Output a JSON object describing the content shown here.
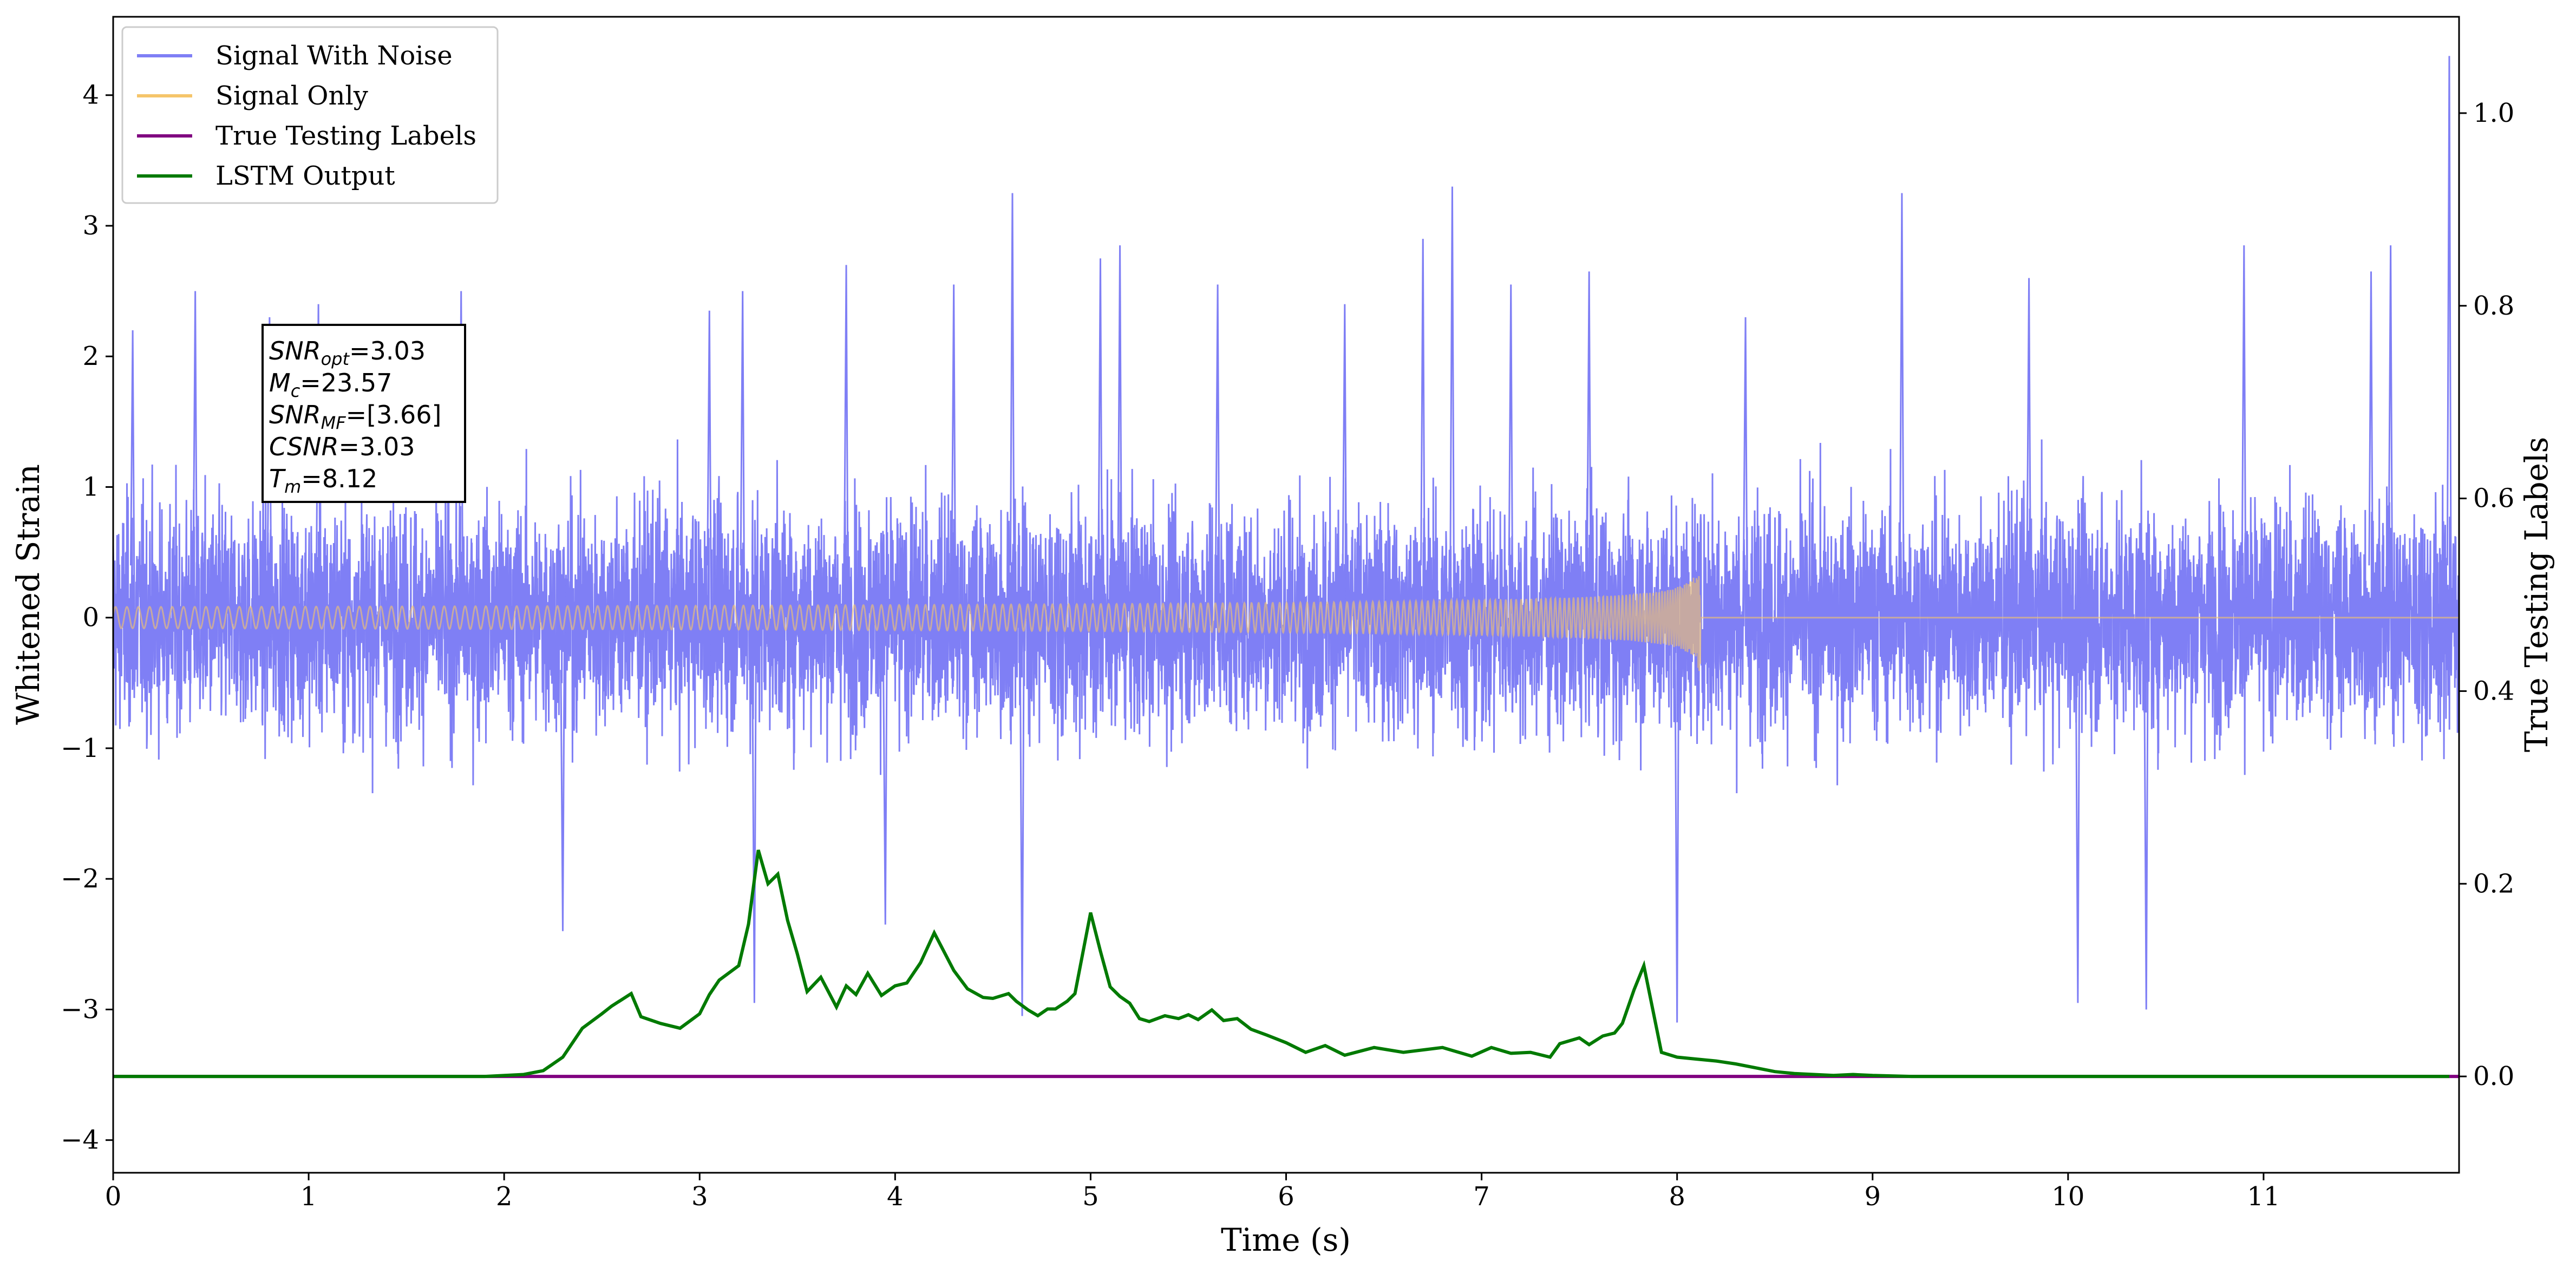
{
  "chart_data": {
    "type": "line",
    "xlabel": "Time (s)",
    "ylabel": "Whitened Strain",
    "ylabel_right": "True Testing Labels",
    "xlim": [
      0,
      12
    ],
    "ylim": [
      -4.25,
      4.6
    ],
    "ylim_right": [
      -0.1,
      1.1
    ],
    "xticks": [
      0,
      1,
      2,
      3,
      4,
      5,
      6,
      7,
      8,
      9,
      10,
      11
    ],
    "yticks": [
      -4,
      -3,
      -2,
      -1,
      0,
      1,
      2,
      3,
      4
    ],
    "yticks_right": [
      0.0,
      0.2,
      0.4,
      0.6,
      0.8,
      1.0
    ],
    "legend_position": "top-left",
    "series": [
      {
        "name": "Signal With Noise",
        "axis": "left",
        "color": "#7f7ff5",
        "description": "whitened noise, roughly within -1.5..1.5 with spikes to about -3 and 3.3",
        "spike_points": [
          [
            0.1,
            2.2
          ],
          [
            0.42,
            2.5
          ],
          [
            0.8,
            2.3
          ],
          [
            1.05,
            2.4
          ],
          [
            1.78,
            2.5
          ],
          [
            2.3,
            -2.4
          ],
          [
            3.05,
            2.35
          ],
          [
            3.22,
            2.5
          ],
          [
            3.28,
            -2.95
          ],
          [
            3.75,
            2.7
          ],
          [
            3.95,
            -2.35
          ],
          [
            4.3,
            2.55
          ],
          [
            4.6,
            3.25
          ],
          [
            4.65,
            -3.05
          ],
          [
            5.05,
            2.75
          ],
          [
            5.15,
            2.85
          ],
          [
            5.65,
            2.55
          ],
          [
            6.3,
            2.4
          ],
          [
            6.7,
            2.9
          ],
          [
            6.85,
            3.3
          ],
          [
            7.15,
            2.55
          ],
          [
            7.55,
            2.65
          ],
          [
            8.0,
            -3.1
          ],
          [
            8.35,
            2.3
          ],
          [
            9.15,
            3.25
          ],
          [
            9.8,
            2.6
          ],
          [
            10.05,
            -2.95
          ],
          [
            10.4,
            -3.0
          ],
          [
            10.9,
            2.85
          ],
          [
            11.55,
            2.65
          ],
          [
            11.65,
            2.85
          ],
          [
            11.95,
            4.3
          ]
        ]
      },
      {
        "name": "Signal Only",
        "axis": "left",
        "color": "#f5c56a",
        "merger_time": 8.12,
        "description": "chirp signal growing in amplitude toward merger at about 8.12 s, peak about 0.55, then zero"
      },
      {
        "name": "True Testing Labels",
        "axis": "right",
        "color": "#800080",
        "x": [
          0,
          12
        ],
        "y": [
          0.0,
          0.0
        ]
      },
      {
        "name": "LSTM Output",
        "axis": "right",
        "color": "#007a00",
        "x": [
          0,
          0.3,
          0.6,
          1.0,
          1.5,
          1.9,
          2.1,
          2.2,
          2.3,
          2.4,
          2.5,
          2.55,
          2.65,
          2.7,
          2.8,
          2.9,
          3.0,
          3.05,
          3.1,
          3.2,
          3.25,
          3.3,
          3.35,
          3.4,
          3.45,
          3.5,
          3.55,
          3.62,
          3.7,
          3.75,
          3.8,
          3.86,
          3.93,
          4.0,
          4.06,
          4.13,
          4.2,
          4.3,
          4.37,
          4.45,
          4.5,
          4.58,
          4.62,
          4.68,
          4.73,
          4.78,
          4.82,
          4.88,
          4.92,
          5.0,
          5.05,
          5.1,
          5.15,
          5.2,
          5.25,
          5.3,
          5.38,
          5.45,
          5.5,
          5.55,
          5.62,
          5.68,
          5.75,
          5.82,
          5.9,
          6.0,
          6.1,
          6.2,
          6.3,
          6.45,
          6.6,
          6.8,
          6.95,
          7.05,
          7.15,
          7.25,
          7.35,
          7.4,
          7.5,
          7.55,
          7.62,
          7.68,
          7.72,
          7.78,
          7.83,
          7.92,
          8.0,
          8.1,
          8.2,
          8.3,
          8.4,
          8.5,
          8.6,
          8.8,
          8.9,
          9.0,
          9.2,
          9.5,
          9.8,
          10.2,
          10.6,
          11.0,
          11.5,
          11.95
        ],
        "y": [
          0.0,
          0.0,
          0.0,
          0.0,
          0.0,
          0.0,
          0.002,
          0.006,
          0.02,
          0.05,
          0.065,
          0.073,
          0.086,
          0.062,
          0.055,
          0.05,
          0.065,
          0.085,
          0.1,
          0.115,
          0.158,
          0.235,
          0.2,
          0.21,
          0.162,
          0.127,
          0.088,
          0.103,
          0.072,
          0.094,
          0.085,
          0.107,
          0.084,
          0.094,
          0.097,
          0.118,
          0.149,
          0.11,
          0.091,
          0.082,
          0.081,
          0.086,
          0.078,
          0.069,
          0.063,
          0.07,
          0.07,
          0.078,
          0.086,
          0.17,
          0.13,
          0.093,
          0.083,
          0.076,
          0.06,
          0.057,
          0.063,
          0.06,
          0.064,
          0.059,
          0.069,
          0.058,
          0.06,
          0.049,
          0.043,
          0.035,
          0.025,
          0.032,
          0.022,
          0.03,
          0.025,
          0.03,
          0.021,
          0.03,
          0.024,
          0.025,
          0.02,
          0.034,
          0.04,
          0.033,
          0.042,
          0.045,
          0.055,
          0.09,
          0.115,
          0.025,
          0.02,
          0.018,
          0.016,
          0.013,
          0.009,
          0.005,
          0.003,
          0.001,
          0.002,
          0.001,
          0.0,
          0.0,
          0.0,
          0.0,
          0.0,
          0.0,
          0.0,
          0.0
        ]
      }
    ],
    "annotations": [
      {
        "label": "SNR_opt",
        "value": "=3.03"
      },
      {
        "label": "M_c",
        "value": "=23.57"
      },
      {
        "label": "SNR_MF",
        "value": "=[3.66]"
      },
      {
        "label": "CSNR",
        "value": "=3.03"
      },
      {
        "label": "T_m",
        "value": "=8.12"
      }
    ]
  },
  "legend": [
    {
      "label": "Signal With Noise",
      "color": "#7f7ff5"
    },
    {
      "label": "Signal Only",
      "color": "#f5c56a"
    },
    {
      "label": "True Testing Labels",
      "color": "#800080"
    },
    {
      "label": "LSTM Output",
      "color": "#007a00"
    }
  ],
  "annotation_box": {
    "lines": [
      {
        "main": "SNR",
        "sub": "opt",
        "rest": "=3.03"
      },
      {
        "main": "M",
        "sub": "c",
        "rest": "=23.57"
      },
      {
        "main": "SNR",
        "sub": "MF",
        "rest": "=[3.66]"
      },
      {
        "main": "CSNR",
        "sub": "",
        "rest": "=3.03"
      },
      {
        "main": "T",
        "sub": "m",
        "rest": "=8.12"
      }
    ]
  }
}
